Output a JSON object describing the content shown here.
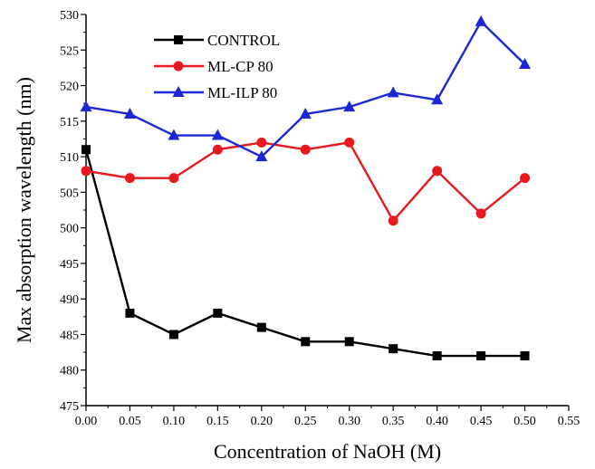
{
  "chart_data": {
    "type": "line",
    "title": "",
    "xlabel": "Concentration of NaOH (M)",
    "ylabel": "Max absorption wavelength (nm)",
    "xlim": [
      0.0,
      0.55
    ],
    "ylim": [
      475,
      530
    ],
    "x_ticks": [
      "0.00",
      "0.05",
      "0.10",
      "0.15",
      "0.20",
      "0.25",
      "0.30",
      "0.35",
      "0.40",
      "0.45",
      "0.50",
      "0.55"
    ],
    "y_ticks": [
      "475",
      "480",
      "485",
      "490",
      "495",
      "500",
      "505",
      "510",
      "515",
      "520",
      "525",
      "530"
    ],
    "grid": false,
    "legend_position": "top-left",
    "x": [
      0.0,
      0.05,
      0.1,
      0.15,
      0.2,
      0.25,
      0.3,
      0.35,
      0.4,
      0.45,
      0.5
    ],
    "series": [
      {
        "name": "CONTROL",
        "marker": "square",
        "color": "#000000",
        "values": [
          511,
          488,
          485,
          488,
          486,
          484,
          484,
          483,
          482,
          482,
          482
        ]
      },
      {
        "name": "ML-CP 80",
        "marker": "circle",
        "color": "#e8191e",
        "values": [
          508,
          507,
          507,
          511,
          512,
          511,
          512,
          501,
          508,
          502,
          507
        ]
      },
      {
        "name": "ML-ILP 80",
        "marker": "triangle",
        "color": "#1c27d6",
        "values": [
          517,
          516,
          513,
          513,
          510,
          516,
          517,
          519,
          518,
          529,
          523
        ]
      }
    ]
  }
}
